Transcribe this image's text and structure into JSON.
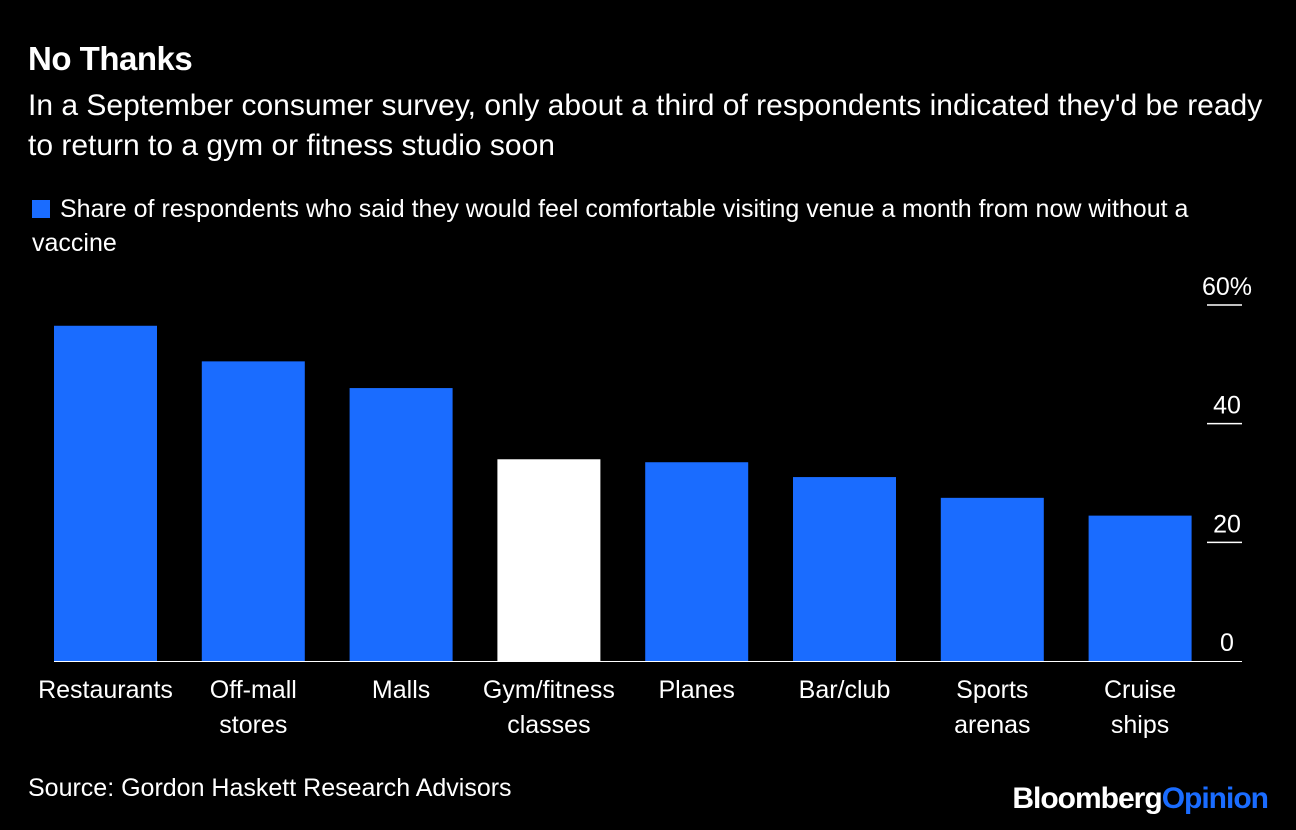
{
  "title": "No Thanks",
  "subtitle": "In a September consumer survey, only about a third of respondents indicated they'd be ready to return to a gym or fitness studio soon",
  "legend_label": "Share of respondents who said they would feel comfortable visiting venue a month from now without a vaccine",
  "source": "Source: Gordon Haskett Research Advisors",
  "brand": {
    "part1": "Bloomberg",
    "part2": "Opinion"
  },
  "colors": {
    "background": "#000000",
    "bar": "#1a6cff",
    "highlight": "#ffffff",
    "text": "#ffffff"
  },
  "chart_data": {
    "type": "bar",
    "categories": [
      [
        "Restaurants"
      ],
      [
        "Off-mall",
        "stores"
      ],
      [
        "Malls"
      ],
      [
        "Gym/fitness",
        "classes"
      ],
      [
        "Planes"
      ],
      [
        "Bar/club"
      ],
      [
        "Sports",
        "arenas"
      ],
      [
        "Cruise",
        "ships"
      ]
    ],
    "values": [
      56.5,
      50.5,
      46,
      34,
      33.5,
      31,
      27.5,
      24.5
    ],
    "highlight_index": 3,
    "y_ticks": [
      {
        "value": 0,
        "label": "0"
      },
      {
        "value": 20,
        "label": "20"
      },
      {
        "value": 40,
        "label": "40"
      },
      {
        "value": 60,
        "label": "60%"
      }
    ],
    "ylim": [
      0,
      60
    ],
    "y_axis_position": "right",
    "grid": false
  }
}
